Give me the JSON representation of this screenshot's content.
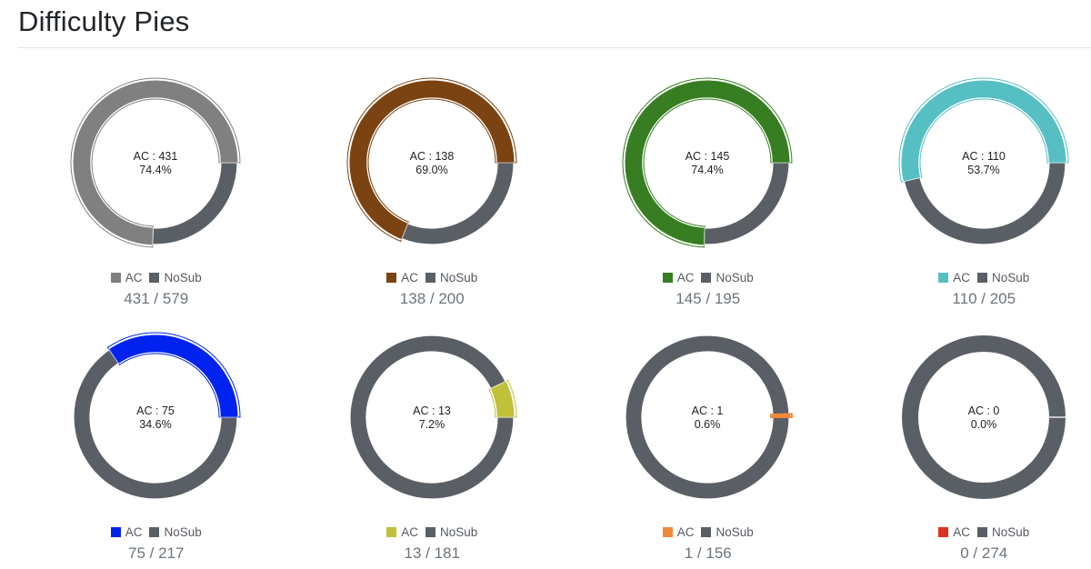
{
  "page": {
    "title": "Difficulty Pies"
  },
  "colors": {
    "nosub": "#5a5f66"
  },
  "chart_data": [
    {
      "type": "pie",
      "ac": 431,
      "total": 579,
      "percent_label": "74.4%",
      "center_label": "AC : 431",
      "count_label": "431 / 579",
      "color": "#808080",
      "legend": [
        "AC",
        "NoSub"
      ]
    },
    {
      "type": "pie",
      "ac": 138,
      "total": 200,
      "percent_label": "69.0%",
      "center_label": "AC : 138",
      "count_label": "138 / 200",
      "color": "#7b4312",
      "legend": [
        "AC",
        "NoSub"
      ]
    },
    {
      "type": "pie",
      "ac": 145,
      "total": 195,
      "percent_label": "74.4%",
      "center_label": "AC : 145",
      "count_label": "145 / 195",
      "color": "#377e22",
      "legend": [
        "AC",
        "NoSub"
      ]
    },
    {
      "type": "pie",
      "ac": 110,
      "total": 205,
      "percent_label": "53.7%",
      "center_label": "AC : 110",
      "count_label": "110 / 205",
      "color": "#56bfc3",
      "legend": [
        "AC",
        "NoSub"
      ]
    },
    {
      "type": "pie",
      "ac": 75,
      "total": 217,
      "percent_label": "34.6%",
      "center_label": "AC : 75",
      "count_label": "75 / 217",
      "color": "#0022ee",
      "legend": [
        "AC",
        "NoSub"
      ]
    },
    {
      "type": "pie",
      "ac": 13,
      "total": 181,
      "percent_label": "7.2%",
      "center_label": "AC : 13",
      "count_label": "13 / 181",
      "color": "#c0c03a",
      "legend": [
        "AC",
        "NoSub"
      ]
    },
    {
      "type": "pie",
      "ac": 1,
      "total": 156,
      "percent_label": "0.6%",
      "center_label": "AC : 1",
      "count_label": "1 / 156",
      "color": "#f0883a",
      "legend": [
        "AC",
        "NoSub"
      ]
    },
    {
      "type": "pie",
      "ac": 0,
      "total": 274,
      "percent_label": "0.0%",
      "center_label": "AC : 0",
      "count_label": "0 / 274",
      "color": "#dd3322",
      "legend": [
        "AC",
        "NoSub"
      ]
    }
  ]
}
